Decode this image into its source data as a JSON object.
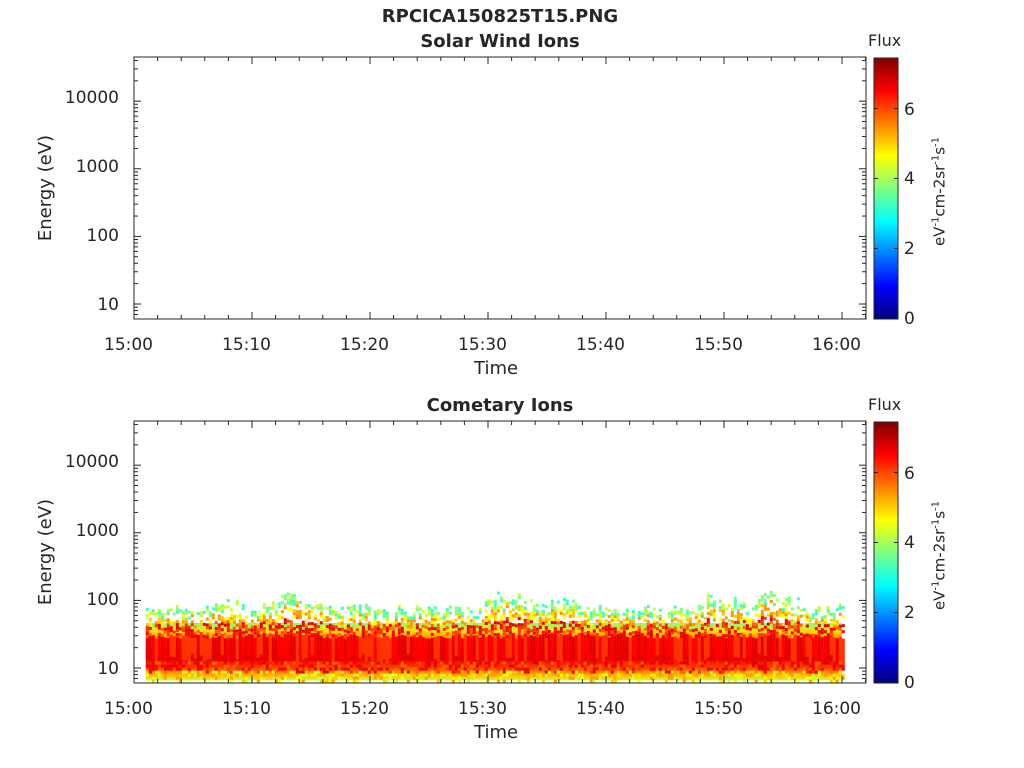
{
  "figure": {
    "title": "RPCICA150825T15.PNG"
  },
  "colorbar": {
    "title": "Flux",
    "unit_label": "eV-1cm-2sr-1s-1",
    "ticks": [
      "0",
      "2",
      "4",
      "6"
    ],
    "range": [
      0,
      7.4
    ],
    "colormap": "jet"
  },
  "chart_data": [
    {
      "type": "heatmap",
      "title": "Solar Wind Ions",
      "xlabel": "Time",
      "ylabel": "Energy (eV)",
      "x_ticks": [
        "15:00",
        "15:10",
        "15:20",
        "15:30",
        "15:40",
        "15:50",
        "16:00"
      ],
      "y_ticks": [
        "10",
        "100",
        "1000",
        "10000"
      ],
      "y_scale": "log",
      "ylim": [
        6,
        45000
      ],
      "colorbar_title": "Flux",
      "colorbar_label": "eV-1cm-2sr-1s-1",
      "colorbar_ticks": [
        "0",
        "2",
        "4",
        "6"
      ],
      "data": "empty"
    },
    {
      "type": "heatmap",
      "title": "Cometary Ions",
      "xlabel": "Time",
      "ylabel": "Energy (eV)",
      "x_ticks": [
        "15:00",
        "15:10",
        "15:20",
        "15:30",
        "15:40",
        "15:50",
        "16:00"
      ],
      "y_ticks": [
        "10",
        "100",
        "1000",
        "10000"
      ],
      "y_scale": "log",
      "ylim": [
        6,
        45000
      ],
      "colorbar_title": "Flux",
      "colorbar_label": "eV-1cm-2sr-1s-1",
      "colorbar_ticks": [
        "0",
        "2",
        "4",
        "6"
      ],
      "data_time_range": [
        "15:01",
        "16:00"
      ],
      "energy_band_eV": [
        7,
        80
      ],
      "peak_flux_energy_eV": 20,
      "peak_flux": 7.2
    }
  ]
}
